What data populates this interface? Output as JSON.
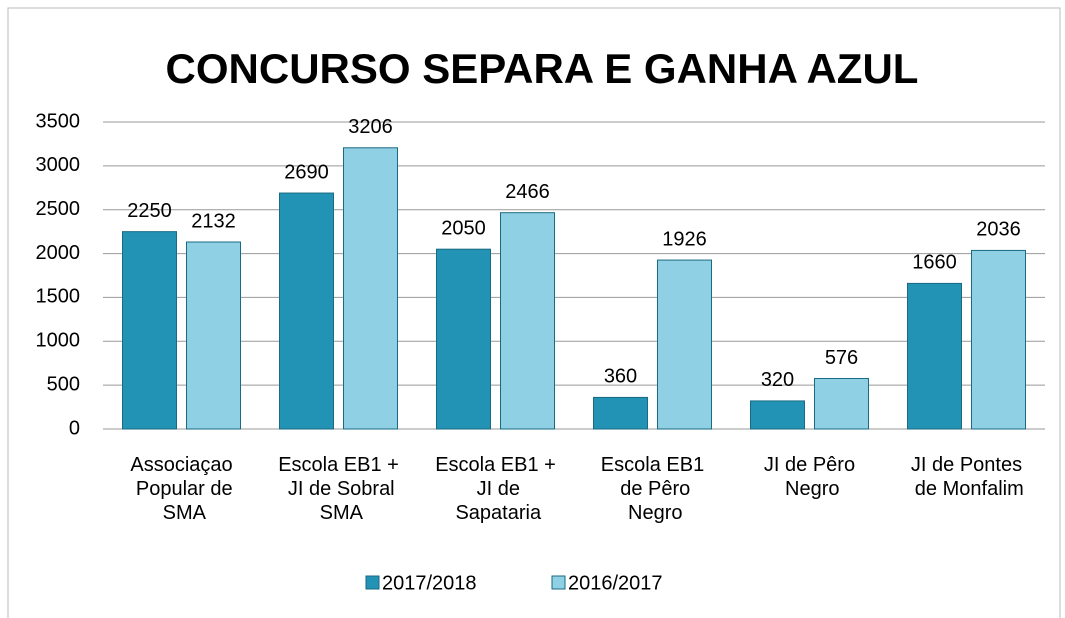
{
  "chart_data": {
    "type": "bar",
    "title": "CONCURSO SEPARA E GANHA AZUL",
    "categories": [
      "Associaçao Popular de SMA",
      "Escola EB1 + JI de Sobral SMA",
      "Escola EB1 + JI de Sapataria",
      "Escola EB1 de Pêro Negro",
      "JI de Pêro Negro",
      "JI de Pontes de Monfalim"
    ],
    "series": [
      {
        "name": "2017/2018",
        "color": "#2293b4",
        "values": [
          2250,
          2690,
          2050,
          360,
          320,
          1660
        ]
      },
      {
        "name": "2016/2017",
        "color": "#8fd0e4",
        "values": [
          2132,
          3206,
          2466,
          1926,
          576,
          2036
        ]
      }
    ],
    "ylim": [
      0,
      3500
    ],
    "yticks": [
      0,
      500,
      1000,
      1500,
      2000,
      2500,
      3000,
      3500
    ],
    "grid": true,
    "legend": "bottom"
  }
}
